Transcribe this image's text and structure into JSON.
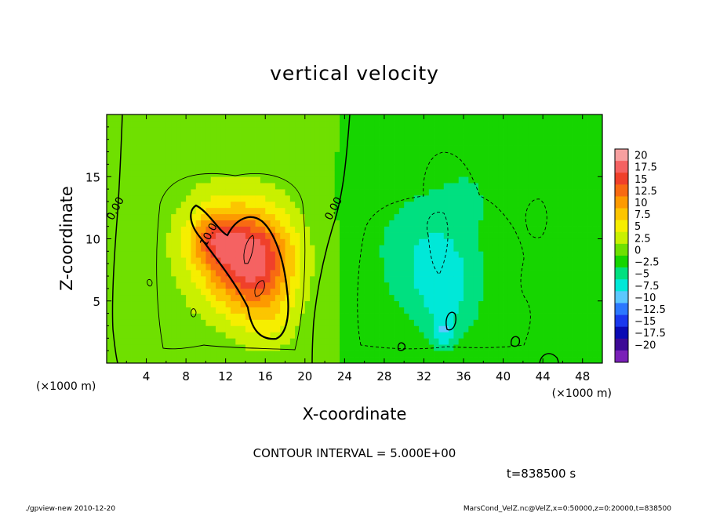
{
  "chart_data": {
    "type": "heatmap",
    "title": "vertical velocity",
    "xlabel": "X-coordinate",
    "ylabel": "Z-coordinate",
    "xlim": [
      0,
      50
    ],
    "ylim": [
      0,
      20
    ],
    "x_ticks": [
      4,
      8,
      12,
      16,
      20,
      24,
      28,
      32,
      36,
      40,
      44,
      48
    ],
    "y_ticks": [
      5,
      10,
      15
    ],
    "x_unit": "(×1000 m)",
    "y_unit": "(×1000 m)",
    "contour_labels": [
      {
        "text": "0.00",
        "x": 1.2,
        "z": 12.3
      },
      {
        "text": "10.0",
        "x": 10.6,
        "z": 10.2
      },
      {
        "text": "0.00",
        "x": 23.2,
        "z": 12.3
      }
    ],
    "colorbar": {
      "labels": [
        "20",
        "17.5",
        "15",
        "12.5",
        "10",
        "7.5",
        "5",
        "2.5",
        "0",
        "−2.5",
        "−5",
        "−7.5",
        "−10",
        "−12.5",
        "−15",
        "−17.5",
        "−20"
      ],
      "colors": [
        "#f7a0a0",
        "#f56262",
        "#f0402a",
        "#f86a12",
        "#fd9a00",
        "#fcc500",
        "#f6ee00",
        "#c9f000",
        "#6fe000",
        "#16d500",
        "#00e080",
        "#00e8d8",
        "#5cc8ff",
        "#2c78ff",
        "#1a38ee",
        "#0a0ab4",
        "#3d0a96",
        "#7a20b8"
      ]
    },
    "field": [
      {
        "x": 14.8,
        "z": 8.2,
        "rx": 4.2,
        "rz": 4.0,
        "w": 17.0
      },
      {
        "x": 10.8,
        "z": 10.0,
        "rx": 2.5,
        "rz": 2.2,
        "w": 8.0
      },
      {
        "x": 11.5,
        "z": 9.5,
        "rx": 6.5,
        "rz": 6.5,
        "w": 4.0
      },
      {
        "x": 16.5,
        "z": 3.0,
        "rx": 3.0,
        "rz": 2.5,
        "w": 3.0
      },
      {
        "x": 32.0,
        "z": 9.0,
        "rx": 5.5,
        "rz": 5.5,
        "w": -4.5
      },
      {
        "x": 34.5,
        "z": 5.5,
        "rx": 3.5,
        "rz": 4.0,
        "w": -4.0
      },
      {
        "x": 34.0,
        "z": 2.5,
        "rx": 1.0,
        "rz": 1.2,
        "w": -4.5
      },
      {
        "x": 36.5,
        "z": 13.5,
        "rx": 3.0,
        "rz": 3.0,
        "w": -2.0
      },
      {
        "x": 44.0,
        "z": 11.5,
        "rx": 1.5,
        "rz": 2.0,
        "w": -2.0
      }
    ]
  },
  "contour_interval": "CONTOUR INTERVAL = 5.000E+00",
  "time_label": "t=838500 s",
  "footer_left": "./gpview-new  2010-12-20",
  "footer_right": "MarsCond_VelZ.nc@VelZ,x=0:50000,z=0:20000,t=838500"
}
